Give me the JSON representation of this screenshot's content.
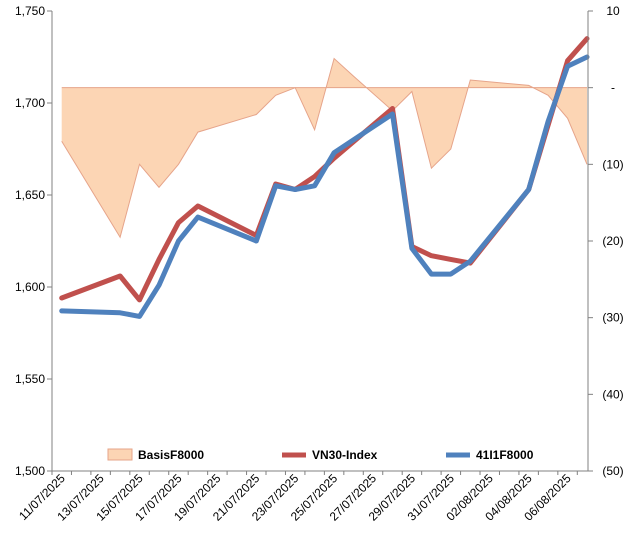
{
  "chart_data": {
    "type": "line",
    "title": "",
    "xlabel": "",
    "ylabel": "",
    "x_tick_labels": [
      "11/07/2025",
      "13/07/2025",
      "15/07/2025",
      "17/07/2025",
      "19/07/2025",
      "21/07/2025",
      "23/07/2025",
      "25/07/2025",
      "27/07/2025",
      "29/07/2025",
      "31/07/2025",
      "02/08/2025",
      "04/08/2025",
      "06/08/2025"
    ],
    "y_left": {
      "ylim": [
        1500,
        1750
      ],
      "ticks": [
        1500,
        1550,
        1600,
        1650,
        1700,
        1750
      ],
      "tick_labels": [
        "1,500",
        "1,550",
        "1,600",
        "1,650",
        "1,700",
        "1,750"
      ]
    },
    "y_right": {
      "ylim": [
        -50,
        10
      ],
      "ticks": [
        10,
        0,
        -10,
        -20,
        -30,
        -40,
        -50
      ],
      "tick_labels": [
        "10",
        "-",
        "(10)",
        "(20)",
        "(30)",
        "(40)",
        "(50)"
      ]
    },
    "grid": false,
    "legend": {
      "position": "bottom-inside",
      "entries": [
        "BasisF8000",
        "VN30-Index",
        "41I1F8000"
      ]
    },
    "series": [
      {
        "name": "BasisF8000",
        "kind": "area",
        "axis": "right",
        "color": "#fcd5b4",
        "edge_color": "#e6a48a",
        "x": [
          "11/07/2025",
          "14/07/2025",
          "15/07/2025",
          "16/07/2025",
          "17/07/2025",
          "18/07/2025",
          "21/07/2025",
          "22/07/2025",
          "23/07/2025",
          "24/07/2025",
          "25/07/2025",
          "26/07/2025",
          "28/07/2025",
          "29/07/2025",
          "30/07/2025",
          "31/07/2025",
          "01/08/2025",
          "04/08/2025",
          "05/08/2025",
          "06/08/2025",
          "07/08/2025"
        ],
        "values": [
          -7.0,
          -19.5,
          -10.0,
          -13.0,
          -10.0,
          -5.8,
          -3.5,
          -1.0,
          0.0,
          -5.5,
          3.8,
          1.5,
          -3.0,
          -0.5,
          -10.5,
          -8.0,
          1.0,
          0.3,
          -1.0,
          -4.0,
          -10.0
        ]
      },
      {
        "name": "VN30-Index",
        "kind": "line",
        "axis": "left",
        "color": "#c0504d",
        "x": [
          "11/07/2025",
          "14/07/2025",
          "15/07/2025",
          "16/07/2025",
          "17/07/2025",
          "18/07/2025",
          "21/07/2025",
          "22/07/2025",
          "23/07/2025",
          "24/07/2025",
          "25/07/2025",
          "28/07/2025",
          "29/07/2025",
          "30/07/2025",
          "31/07/2025",
          "01/08/2025",
          "04/08/2025",
          "05/08/2025",
          "06/08/2025",
          "07/08/2025"
        ],
        "values": [
          1594,
          1606,
          1593,
          1615,
          1635,
          1644,
          1628,
          1656,
          1653,
          1660,
          1670,
          1697,
          1622,
          1617,
          1615,
          1613,
          1653,
          1688,
          1723,
          1735
        ]
      },
      {
        "name": "41I1F8000",
        "kind": "line",
        "axis": "left",
        "color": "#4f81bd",
        "x": [
          "11/07/2025",
          "14/07/2025",
          "15/07/2025",
          "16/07/2025",
          "17/07/2025",
          "18/07/2025",
          "21/07/2025",
          "22/07/2025",
          "23/07/2025",
          "24/07/2025",
          "25/07/2025",
          "28/07/2025",
          "29/07/2025",
          "30/07/2025",
          "31/07/2025",
          "01/08/2025",
          "04/08/2025",
          "05/08/2025",
          "06/08/2025",
          "07/08/2025"
        ],
        "values": [
          1587,
          1586,
          1584,
          1601,
          1625,
          1638,
          1625,
          1655,
          1653,
          1655,
          1673,
          1694,
          1621,
          1607,
          1607,
          1614,
          1653,
          1690,
          1720,
          1725
        ]
      }
    ]
  }
}
